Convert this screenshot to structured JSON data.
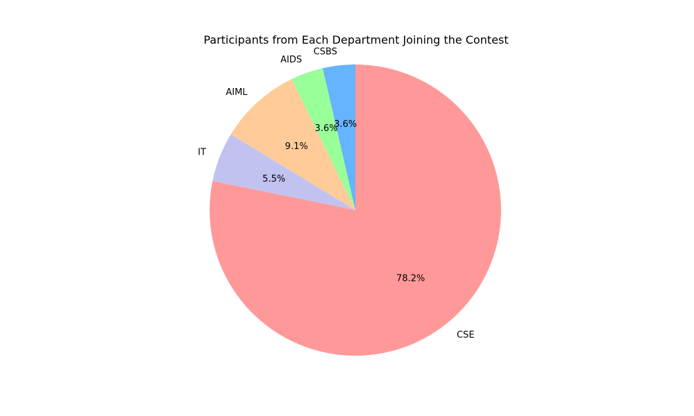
{
  "chart_data": {
    "type": "pie",
    "title": "Participants from Each Department Joining the Contest",
    "start_angle_deg": 90,
    "direction": "counterclockwise",
    "slices": [
      {
        "label": "CSBS",
        "percent": 3.6,
        "pct_text": "3.6%",
        "color": "#66b3ff"
      },
      {
        "label": "AIDS",
        "percent": 3.6,
        "pct_text": "3.6%",
        "color": "#99ff99"
      },
      {
        "label": "AIML",
        "percent": 9.1,
        "pct_text": "9.1%",
        "color": "#ffcc99"
      },
      {
        "label": "IT",
        "percent": 5.5,
        "pct_text": "5.5%",
        "color": "#c2c2f0"
      },
      {
        "label": "CSE",
        "percent": 78.2,
        "pct_text": "78.2%",
        "color": "#ff9999"
      }
    ],
    "legend": "none",
    "grid": false
  }
}
